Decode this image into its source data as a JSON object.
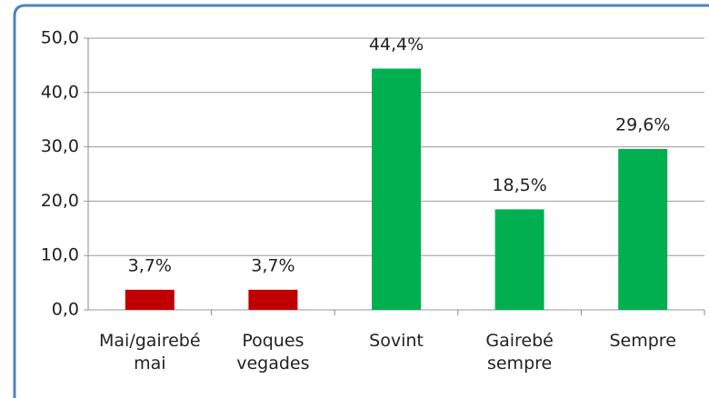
{
  "chart_data": {
    "type": "bar",
    "categories": [
      "Mai/gairebé mai",
      "Poques vegades",
      "Sovint",
      "Gairebé sempre",
      "Sempre"
    ],
    "values": [
      3.7,
      3.7,
      44.4,
      18.5,
      29.6
    ],
    "value_labels": [
      "3,7%",
      "3,7%",
      "44,4%",
      "18,5%",
      "29,6%"
    ],
    "colors": [
      "#c00000",
      "#c00000",
      "#00b050",
      "#00b050",
      "#00b050"
    ],
    "ylim": [
      0,
      50
    ],
    "yticks": [
      {
        "value": 0,
        "label": "0,0"
      },
      {
        "value": 10,
        "label": "10,0"
      },
      {
        "value": 20,
        "label": "20,0"
      },
      {
        "value": 30,
        "label": "30,0"
      },
      {
        "value": 40,
        "label": "40,0"
      },
      {
        "value": 50,
        "label": "50,0"
      }
    ],
    "grid": true
  }
}
